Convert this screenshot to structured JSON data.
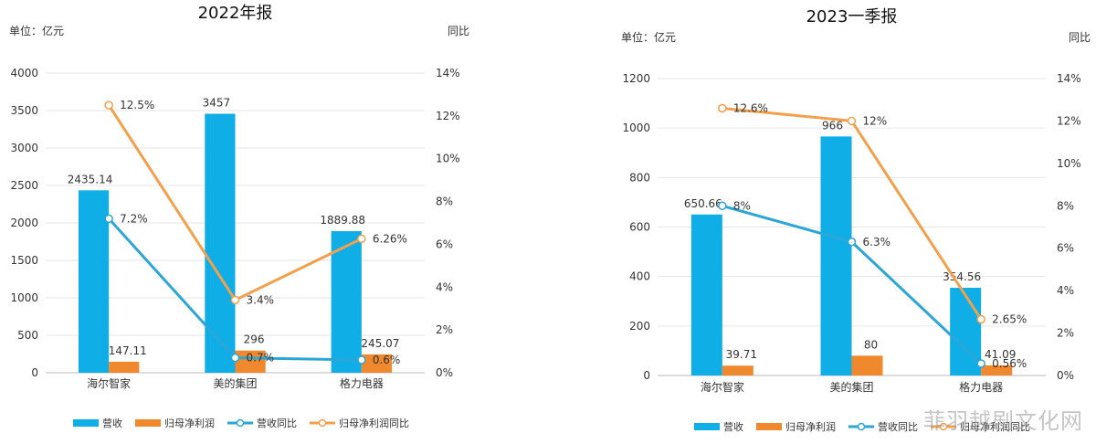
{
  "colors": {
    "revenue_bar": "#0FAEE6",
    "profit_bar": "#F0882E",
    "revenue_yoy_line": "#2BA6D6",
    "profit_yoy_line": "#F2A04C",
    "axis_text": "#333333"
  },
  "watermark": "菲羽越剧文化网",
  "chart_data": [
    {
      "type": "bar",
      "title": "2022年报",
      "ylabel": "单位：亿元",
      "y2label": "同比",
      "categories": [
        "海尔智家",
        "美的集团",
        "格力电器"
      ],
      "ylim": [
        0,
        4000
      ],
      "yticks": [
        0,
        500,
        1000,
        1500,
        2000,
        2500,
        3000,
        3500,
        4000
      ],
      "y2lim": [
        0,
        14
      ],
      "y2ticks": [
        "0%",
        "2%",
        "4%",
        "6%",
        "8%",
        "10%",
        "12%",
        "14%"
      ],
      "series": [
        {
          "name": "营收",
          "kind": "bar",
          "values": [
            2435.14,
            3457,
            1889.88
          ],
          "labels": [
            "2435.14",
            "3457",
            "1889.88"
          ]
        },
        {
          "name": "归母净利润",
          "kind": "bar",
          "values": [
            147.11,
            296,
            245.07
          ],
          "labels": [
            "147.11",
            "296",
            "245.07"
          ]
        },
        {
          "name": "营收同比",
          "kind": "line",
          "axis": "right",
          "values": [
            7.2,
            0.7,
            0.6
          ],
          "labels": [
            "7.2%",
            "0.7%",
            "0.6%"
          ]
        },
        {
          "name": "归母净利润同比",
          "kind": "line",
          "axis": "right",
          "values": [
            12.5,
            3.4,
            6.26
          ],
          "labels": [
            "12.5%",
            "3.4%",
            "6.26%"
          ]
        }
      ],
      "legend": "bottom"
    },
    {
      "type": "bar",
      "title": "2023一季报",
      "ylabel": "单位：亿元",
      "y2label": "同比",
      "categories": [
        "海尔智家",
        "美的集团",
        "格力电器"
      ],
      "ylim": [
        0,
        1200
      ],
      "yticks": [
        0,
        200,
        400,
        600,
        800,
        1000,
        1200
      ],
      "y2lim": [
        0,
        14
      ],
      "y2ticks": [
        "0%",
        "2%",
        "4%",
        "6%",
        "8%",
        "10%",
        "12%",
        "14%"
      ],
      "series": [
        {
          "name": "营收",
          "kind": "bar",
          "values": [
            650.66,
            966,
            354.56
          ],
          "labels": [
            "650.66",
            "966",
            "354.56"
          ]
        },
        {
          "name": "归母净利润",
          "kind": "bar",
          "values": [
            39.71,
            80,
            41.09
          ],
          "labels": [
            "39.71",
            "80",
            "41.09"
          ]
        },
        {
          "name": "营收同比",
          "kind": "line",
          "axis": "right",
          "values": [
            8,
            6.3,
            0.56
          ],
          "labels": [
            "8%",
            "6.3%",
            "0.56%"
          ]
        },
        {
          "name": "归母净利润同比",
          "kind": "line",
          "axis": "right",
          "values": [
            12.6,
            12,
            2.65
          ],
          "labels": [
            "12.6%",
            "12%",
            "2.65%"
          ]
        }
      ],
      "legend": "bottom"
    }
  ]
}
